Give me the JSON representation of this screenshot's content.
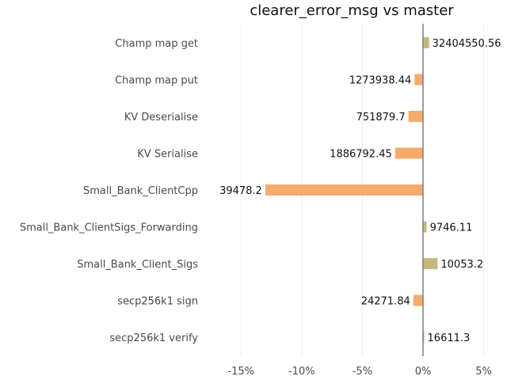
{
  "chart_data": {
    "type": "bar",
    "orientation": "horizontal",
    "title": "clearer_error_msg vs master",
    "xlabel": "",
    "ylabel": "",
    "xlim": [
      -0.17,
      0.05
    ],
    "grid": "vertical",
    "categories": [
      "Champ map get",
      "Champ map put",
      "KV Deserialise",
      "KV Serialise",
      "Small_Bank_ClientCpp",
      "Small_Bank_ClientSigs_Forwarding",
      "Small_Bank_Client_Sigs",
      "secp256k1 sign",
      "secp256k1 verify"
    ],
    "values": [
      0.005,
      -0.007,
      -0.012,
      -0.023,
      -0.13,
      0.003,
      0.012,
      -0.008,
      0.001
    ],
    "data_labels": [
      "32404550.56",
      "1273938.44",
      "751879.7",
      "1886792.45",
      "39478.2",
      "9746.11",
      "10053.2",
      "24271.84",
      "16611.3"
    ],
    "x_ticks": [
      {
        "value": -0.15,
        "label": "-15%"
      },
      {
        "value": -0.1,
        "label": "-10%"
      },
      {
        "value": -0.05,
        "label": "-5%"
      },
      {
        "value": 0.0,
        "label": "0%"
      },
      {
        "value": 0.05,
        "label": "5%"
      }
    ],
    "colors": {
      "positive": "#c4b97a",
      "negative": "#f4ab6b",
      "zero_line": "#7f7f7f",
      "grid": "#ececec"
    }
  }
}
